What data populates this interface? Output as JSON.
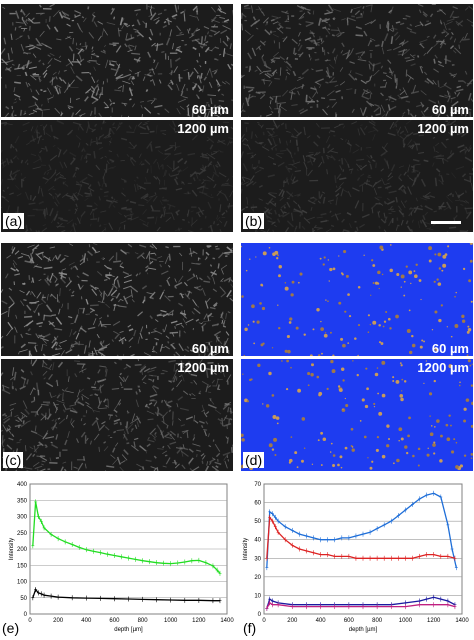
{
  "panels": [
    {
      "id": "a",
      "letter": "(a)",
      "top_label": "60 µm",
      "bottom_label": "1200 µm",
      "top_color": "#8a8a8a",
      "bottom_color": "#3a3a3a",
      "blue": false
    },
    {
      "id": "b",
      "letter": "(b)",
      "top_label": "60 µm",
      "bottom_label": "1200 µm",
      "top_color": "#6e6e6e",
      "bottom_color": "#3e3e3e",
      "blue": false
    },
    {
      "id": "c",
      "letter": "(c)",
      "top_label": "60 µm",
      "bottom_label": "1200 µm",
      "top_color": "#8c8c8c",
      "bottom_color": "#707070",
      "blue": false
    },
    {
      "id": "d",
      "letter": "(d)",
      "top_label": "60 µm",
      "bottom_label": "1200 µm",
      "top_color": "#1e3cf0",
      "bottom_color": "#1e3cf0",
      "blue": true
    }
  ],
  "chart_data": [
    {
      "id": "e",
      "letter": "(e)",
      "type": "line",
      "xlabel": "depth [µm]",
      "ylabel": "Intensity",
      "xlim": [
        0,
        1400
      ],
      "ylim": [
        0,
        400
      ],
      "xticks": [
        0,
        200,
        400,
        600,
        800,
        1000,
        1200,
        1400
      ],
      "yticks": [
        0,
        50,
        100,
        150,
        200,
        250,
        300,
        350,
        400
      ],
      "series": [
        {
          "color": "#22dd22",
          "x": [
            20,
            40,
            60,
            80,
            100,
            150,
            200,
            250,
            300,
            350,
            400,
            450,
            500,
            550,
            600,
            650,
            700,
            750,
            800,
            850,
            900,
            950,
            1000,
            1050,
            1100,
            1150,
            1200,
            1250,
            1300,
            1330,
            1350
          ],
          "y": [
            210,
            345,
            300,
            285,
            265,
            245,
            232,
            222,
            214,
            205,
            198,
            193,
            189,
            184,
            180,
            176,
            172,
            168,
            164,
            161,
            158,
            156,
            155,
            157,
            160,
            164,
            165,
            158,
            148,
            135,
            125
          ]
        },
        {
          "color": "#000000",
          "x": [
            20,
            40,
            60,
            80,
            100,
            150,
            200,
            300,
            400,
            500,
            600,
            700,
            800,
            900,
            1000,
            1100,
            1200,
            1300,
            1350
          ],
          "y": [
            50,
            75,
            65,
            62,
            58,
            55,
            52,
            50,
            49,
            48,
            47,
            46,
            45,
            44,
            43,
            42,
            42,
            41,
            41
          ]
        }
      ]
    },
    {
      "id": "f",
      "letter": "(f)",
      "type": "line",
      "xlabel": "depth [µm]",
      "ylabel": "Intensity",
      "xlim": [
        0,
        1400
      ],
      "ylim": [
        0,
        70
      ],
      "xticks": [
        0,
        200,
        400,
        600,
        800,
        1000,
        1200,
        1400
      ],
      "yticks": [
        0,
        10,
        20,
        30,
        40,
        50,
        60,
        70
      ],
      "series": [
        {
          "color": "#1e6ed8",
          "x": [
            20,
            40,
            60,
            80,
            100,
            150,
            200,
            250,
            300,
            350,
            400,
            450,
            500,
            550,
            600,
            650,
            700,
            750,
            800,
            850,
            900,
            950,
            1000,
            1050,
            1100,
            1150,
            1200,
            1250,
            1300,
            1330,
            1360
          ],
          "y": [
            25,
            55,
            54,
            52,
            50,
            47,
            45,
            43,
            42,
            41,
            40,
            40,
            40,
            41,
            41,
            42,
            43,
            44,
            46,
            48,
            50,
            53,
            56,
            59,
            62,
            64,
            65,
            63,
            48,
            35,
            25
          ]
        },
        {
          "color": "#dd2222",
          "x": [
            20,
            40,
            60,
            80,
            100,
            150,
            200,
            250,
            300,
            350,
            400,
            450,
            500,
            550,
            600,
            650,
            700,
            750,
            800,
            850,
            900,
            950,
            1000,
            1050,
            1100,
            1150,
            1200,
            1250,
            1300,
            1350
          ],
          "y": [
            30,
            52,
            50,
            47,
            44,
            40,
            37,
            35,
            34,
            33,
            32,
            32,
            31,
            31,
            31,
            30,
            30,
            30,
            30,
            30,
            30,
            30,
            30,
            30,
            31,
            32,
            32,
            31,
            31,
            30
          ]
        },
        {
          "color": "#1a1aa0",
          "x": [
            20,
            40,
            60,
            100,
            200,
            300,
            400,
            500,
            600,
            700,
            800,
            900,
            1000,
            1100,
            1150,
            1200,
            1250,
            1300,
            1350
          ],
          "y": [
            3,
            8,
            7,
            6,
            5,
            5,
            5,
            5,
            5,
            5,
            5,
            5,
            6,
            7,
            8,
            9,
            8,
            7,
            5
          ]
        },
        {
          "color": "#c02080",
          "x": [
            20,
            40,
            60,
            100,
            200,
            300,
            400,
            500,
            600,
            700,
            800,
            900,
            1000,
            1100,
            1200,
            1300,
            1350
          ],
          "y": [
            3,
            6,
            5,
            5,
            4,
            4,
            4,
            4,
            4,
            4,
            4,
            4,
            4,
            5,
            5,
            5,
            4
          ]
        }
      ]
    }
  ]
}
